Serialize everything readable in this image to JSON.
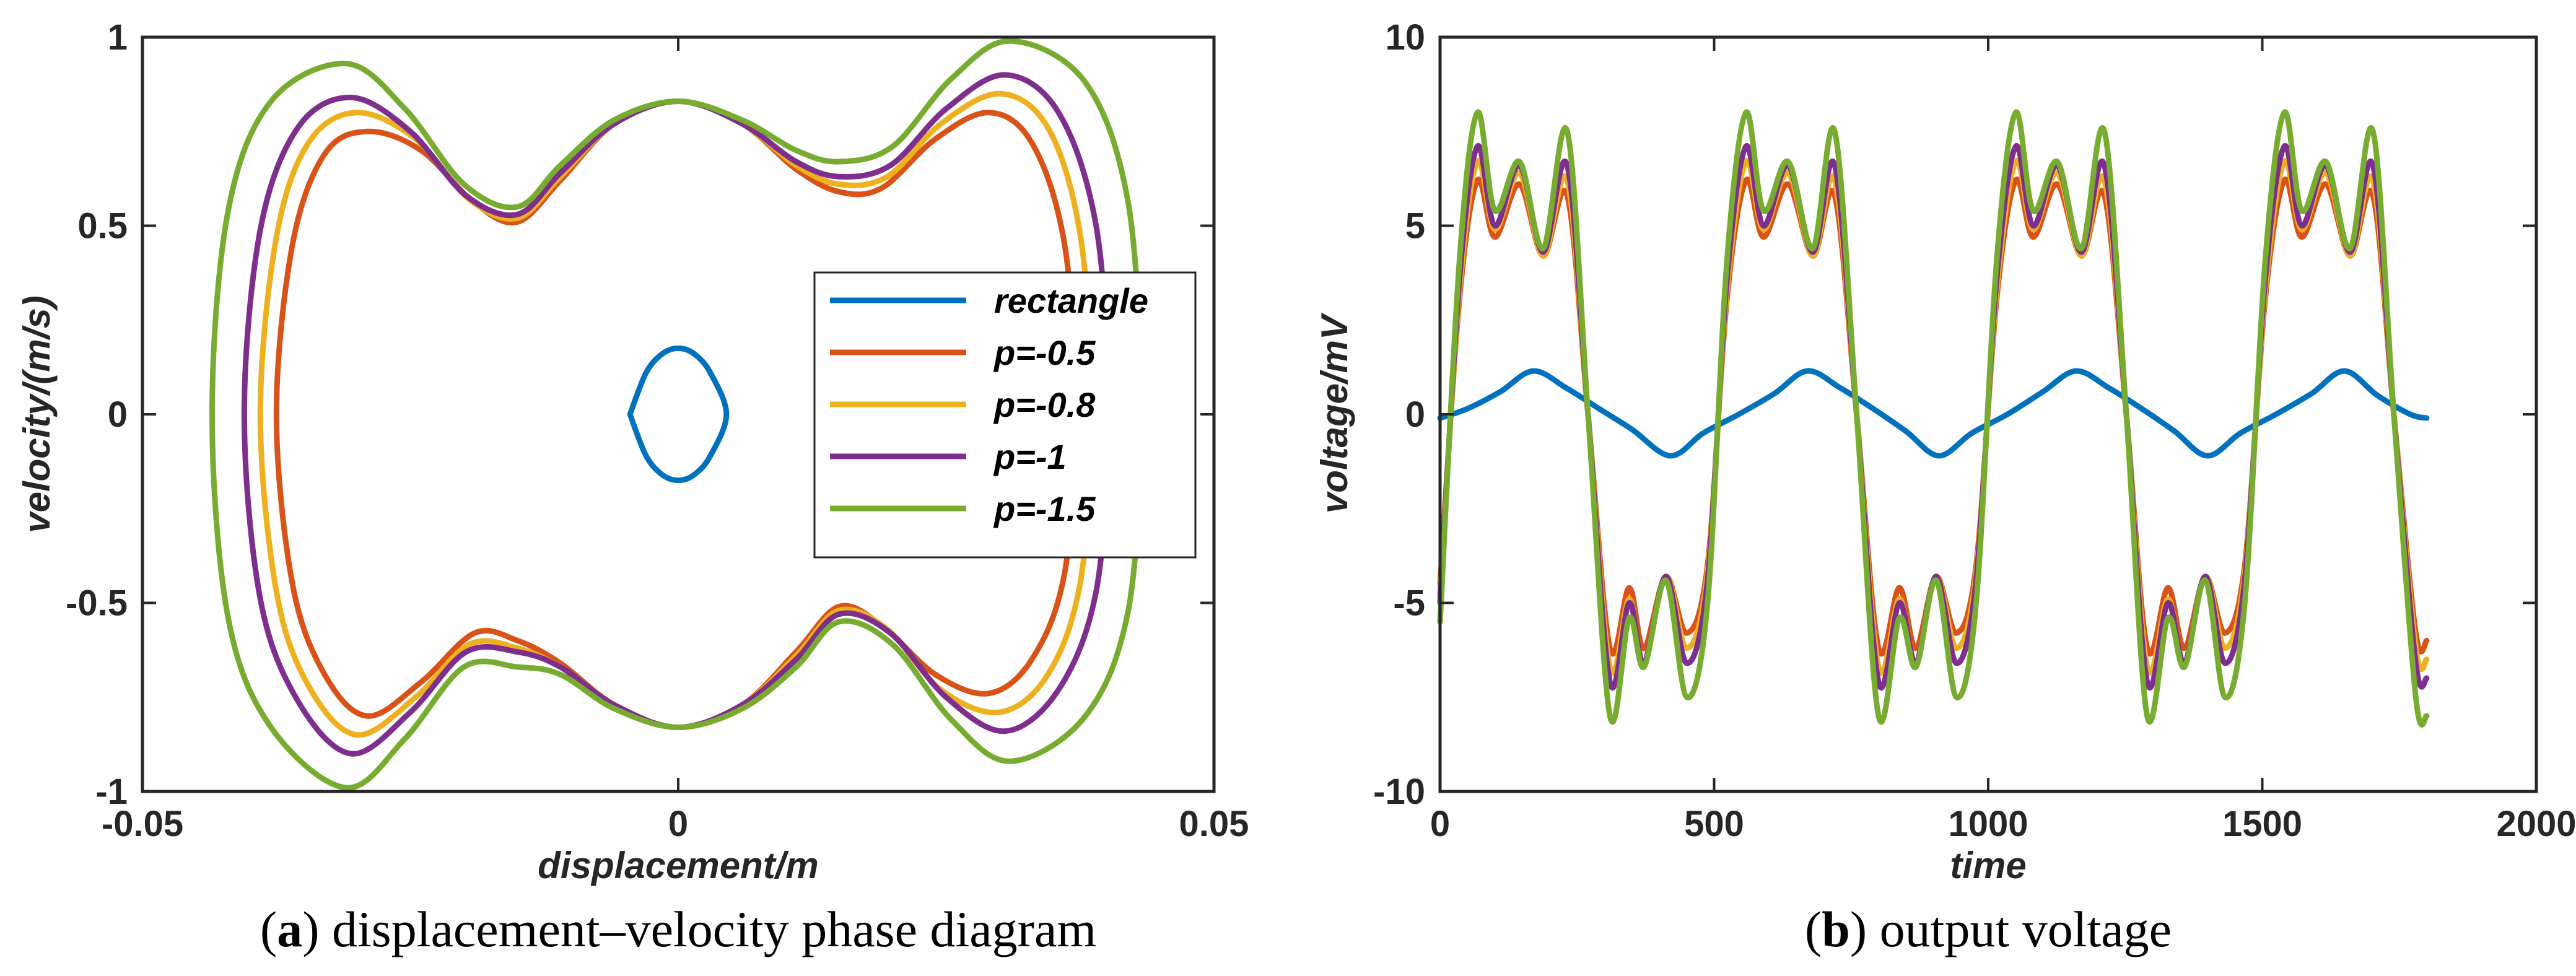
{
  "chart_data": [
    {
      "type": "line",
      "caption_letter": "a",
      "caption_text": "displacement–velocity phase diagram",
      "xlabel": "displacement/m",
      "ylabel": "velocity/(m/s)",
      "xlim": [
        -0.05,
        0.05
      ],
      "ylim": [
        -1,
        1
      ],
      "xticks": [
        -0.05,
        0,
        0.05
      ],
      "xtick_labels": [
        "-0.05",
        "0",
        "0.05"
      ],
      "yticks": [
        -1,
        -0.5,
        0,
        0.5,
        1
      ],
      "ytick_labels": [
        "-1",
        "-0.5",
        "0",
        "0.5",
        "1"
      ],
      "legend_position": "right",
      "series": [
        {
          "name": "rectangle",
          "color": "#0072BD",
          "x": [
            -0.0045,
            -0.003,
            -0.0015,
            0,
            0.0015,
            0.003,
            0.0045,
            0.003,
            0.0015,
            0,
            -0.0015,
            -0.003,
            -0.0045
          ],
          "y": [
            0,
            0.11,
            0.16,
            0.175,
            0.16,
            0.11,
            0,
            -0.11,
            -0.16,
            -0.175,
            -0.16,
            -0.11,
            0
          ]
        },
        {
          "name": "p=-0.5",
          "color": "#D95319",
          "x": [
            0.0375,
            0.036,
            0.033,
            0.029,
            0.024,
            0.019,
            0.015,
            0.011,
            0.006,
            0,
            -0.006,
            -0.011,
            -0.015,
            -0.019,
            -0.024,
            -0.029,
            -0.033,
            -0.036,
            -0.0375,
            -0.036,
            -0.033,
            -0.029,
            -0.024,
            -0.019,
            -0.015,
            -0.011,
            -0.006,
            0,
            0.006,
            0.011,
            0.015,
            0.019,
            0.024,
            0.029,
            0.033,
            0.036,
            0.0375
          ],
          "y": [
            0,
            0.46,
            0.72,
            0.8,
            0.73,
            0.6,
            0.59,
            0.65,
            0.77,
            0.83,
            0.77,
            0.62,
            0.51,
            0.56,
            0.7,
            0.75,
            0.69,
            0.45,
            0,
            -0.45,
            -0.69,
            -0.8,
            -0.71,
            -0.58,
            -0.6,
            -0.66,
            -0.77,
            -0.83,
            -0.77,
            -0.63,
            -0.51,
            -0.56,
            -0.69,
            -0.74,
            -0.65,
            -0.43,
            0
          ]
        },
        {
          "name": "p=-0.8",
          "color": "#EDB120",
          "x": [
            0.039,
            0.0375,
            0.0345,
            0.03,
            0.0245,
            0.0195,
            0.015,
            0.011,
            0.006,
            0,
            -0.006,
            -0.011,
            -0.015,
            -0.0195,
            -0.0245,
            -0.03,
            -0.0345,
            -0.0375,
            -0.039,
            -0.0375,
            -0.0345,
            -0.03,
            -0.0245,
            -0.0195,
            -0.015,
            -0.011,
            -0.006,
            0,
            0.006,
            0.011,
            0.015,
            0.0195,
            0.0245,
            0.03,
            0.0345,
            0.0375,
            0.039
          ],
          "y": [
            0,
            0.48,
            0.76,
            0.85,
            0.77,
            0.63,
            0.61,
            0.66,
            0.77,
            0.83,
            0.77,
            0.63,
            0.52,
            0.57,
            0.73,
            0.8,
            0.72,
            0.47,
            0,
            -0.47,
            -0.72,
            -0.85,
            -0.75,
            -0.61,
            -0.62,
            -0.67,
            -0.77,
            -0.83,
            -0.77,
            -0.64,
            -0.52,
            -0.57,
            -0.73,
            -0.79,
            -0.69,
            -0.45,
            0
          ]
        },
        {
          "name": "p=-1",
          "color": "#7E2F8E",
          "x": [
            0.0405,
            0.039,
            0.0355,
            0.0305,
            0.025,
            0.0198,
            0.015,
            0.011,
            0.006,
            0,
            -0.006,
            -0.011,
            -0.015,
            -0.0198,
            -0.025,
            -0.0305,
            -0.0355,
            -0.039,
            -0.0405,
            -0.039,
            -0.0355,
            -0.0305,
            -0.025,
            -0.0198,
            -0.015,
            -0.011,
            -0.006,
            0,
            0.006,
            0.011,
            0.015,
            0.0198,
            0.025,
            0.0305,
            0.0355,
            0.039,
            0.0405
          ],
          "y": [
            0,
            0.5,
            0.8,
            0.9,
            0.81,
            0.66,
            0.63,
            0.67,
            0.77,
            0.83,
            0.77,
            0.64,
            0.53,
            0.58,
            0.75,
            0.84,
            0.76,
            0.49,
            0,
            -0.49,
            -0.76,
            -0.9,
            -0.79,
            -0.63,
            -0.63,
            -0.67,
            -0.77,
            -0.83,
            -0.77,
            -0.65,
            -0.53,
            -0.58,
            -0.75,
            -0.84,
            -0.73,
            -0.47,
            0
          ]
        },
        {
          "name": "p=-1.5",
          "color": "#77AC30",
          "x": [
            0.0435,
            0.042,
            0.038,
            0.031,
            0.0255,
            0.02,
            0.015,
            0.011,
            0.006,
            0,
            -0.006,
            -0.011,
            -0.015,
            -0.02,
            -0.0255,
            -0.031,
            -0.038,
            -0.042,
            -0.0435,
            -0.042,
            -0.038,
            -0.031,
            -0.0255,
            -0.02,
            -0.015,
            -0.011,
            -0.006,
            0,
            0.006,
            0.011,
            0.015,
            0.02,
            0.0255,
            0.031,
            0.038,
            0.042,
            0.0435
          ],
          "y": [
            0,
            0.56,
            0.88,
            0.99,
            0.89,
            0.71,
            0.67,
            0.7,
            0.78,
            0.83,
            0.78,
            0.66,
            0.55,
            0.61,
            0.81,
            0.93,
            0.83,
            0.54,
            0,
            -0.54,
            -0.83,
            -0.99,
            -0.86,
            -0.67,
            -0.67,
            -0.69,
            -0.78,
            -0.83,
            -0.78,
            -0.67,
            -0.55,
            -0.61,
            -0.81,
            -0.92,
            -0.8,
            -0.52,
            0
          ]
        }
      ]
    },
    {
      "type": "line",
      "caption_letter": "b",
      "caption_text": "output voltage",
      "xlabel": "time",
      "ylabel": "voltage/mV",
      "xlim": [
        0,
        2000
      ],
      "ylim": [
        -10,
        10
      ],
      "xticks": [
        0,
        500,
        1000,
        1500,
        2000
      ],
      "xtick_labels": [
        "0",
        "500",
        "1000",
        "1500",
        "2000"
      ],
      "yticks": [
        -10,
        -5,
        0,
        5,
        10
      ],
      "ytick_labels": [
        "-10",
        "-5",
        "0",
        "5",
        "10"
      ],
      "series": [
        {
          "name": "rectangle",
          "color": "#0072BD",
          "x": [
            0,
            50,
            110,
            170,
            230,
            290,
            350,
            420,
            480,
            545,
            610,
            670,
            730,
            790,
            850,
            910,
            970,
            1035,
            1100,
            1160,
            1220,
            1280,
            1340,
            1400,
            1460,
            1525,
            1590,
            1650,
            1710,
            1770,
            1800
          ],
          "y": [
            -0.1,
            0.15,
            0.6,
            1.15,
            0.7,
            0.15,
            -0.4,
            -1.1,
            -0.5,
            0,
            0.55,
            1.15,
            0.7,
            0.15,
            -0.45,
            -1.1,
            -0.5,
            0,
            0.6,
            1.15,
            0.7,
            0.15,
            -0.45,
            -1.1,
            -0.5,
            0,
            0.55,
            1.15,
            0.5,
            0,
            -0.1
          ]
        },
        {
          "name": "p=-0.5",
          "color": "#D95319",
          "x": [
            0,
            35,
            68,
            100,
            145,
            188,
            232,
            270,
            310,
            345,
            372,
            412,
            450,
            488,
            523,
            558,
            590,
            635,
            680,
            720,
            760,
            800,
            838,
            868,
            905,
            942,
            978,
            1015,
            1050,
            1082,
            1126,
            1170,
            1212,
            1252,
            1290,
            1328,
            1358,
            1396,
            1432,
            1468,
            1505,
            1540,
            1572,
            1616,
            1660,
            1702,
            1740,
            1780,
            1800
          ],
          "y": [
            -4.5,
            3,
            6.2,
            4.7,
            6.1,
            4.2,
            5.8,
            0,
            -6.2,
            -4.6,
            -6.2,
            -4.3,
            -5.8,
            -4,
            3,
            6.2,
            4.7,
            6.1,
            4.2,
            5.8,
            0,
            -6.2,
            -4.6,
            -6.2,
            -4.3,
            -5.8,
            -4,
            3,
            6.2,
            4.7,
            6.1,
            4.2,
            5.8,
            0,
            -6.2,
            -4.6,
            -6.2,
            -4.3,
            -5.8,
            -4,
            3,
            6.2,
            4.7,
            6.1,
            4.2,
            5.8,
            0,
            -5.8,
            -6
          ]
        },
        {
          "name": "p=-0.8",
          "color": "#EDB120",
          "x": [
            0,
            35,
            68,
            100,
            145,
            188,
            232,
            270,
            310,
            345,
            372,
            412,
            450,
            488,
            523,
            558,
            590,
            635,
            680,
            720,
            760,
            800,
            838,
            868,
            905,
            942,
            978,
            1015,
            1050,
            1082,
            1126,
            1170,
            1212,
            1252,
            1290,
            1328,
            1358,
            1396,
            1432,
            1468,
            1505,
            1540,
            1572,
            1616,
            1660,
            1702,
            1740,
            1780,
            1800
          ],
          "y": [
            -4.8,
            3.2,
            6.7,
            4.9,
            6.4,
            4.2,
            6.2,
            0,
            -6.7,
            -4.9,
            -6.6,
            -4.3,
            -6.2,
            -4.2,
            3.2,
            6.7,
            4.9,
            6.4,
            4.2,
            6.2,
            0,
            -6.7,
            -4.9,
            -6.6,
            -4.3,
            -6.2,
            -4.2,
            3.2,
            6.7,
            4.9,
            6.4,
            4.2,
            6.2,
            0,
            -6.7,
            -4.9,
            -6.6,
            -4.3,
            -6.2,
            -4.2,
            3.2,
            6.7,
            4.9,
            6.4,
            4.2,
            6.2,
            0,
            -6.2,
            -6.5
          ]
        },
        {
          "name": "p=-1",
          "color": "#7E2F8E",
          "x": [
            0,
            35,
            68,
            100,
            145,
            188,
            232,
            270,
            310,
            345,
            372,
            412,
            450,
            488,
            523,
            558,
            590,
            635,
            680,
            720,
            760,
            800,
            838,
            868,
            905,
            942,
            978,
            1015,
            1050,
            1082,
            1126,
            1170,
            1212,
            1252,
            1290,
            1328,
            1358,
            1396,
            1432,
            1468,
            1505,
            1540,
            1572,
            1616,
            1660,
            1702,
            1740,
            1780,
            1800
          ],
          "y": [
            -5,
            3.5,
            7.1,
            5,
            6.6,
            4.3,
            6.6,
            0,
            -7.1,
            -5,
            -6.6,
            -4.3,
            -6.6,
            -4.4,
            3.5,
            7.1,
            5,
            6.6,
            4.3,
            6.6,
            0,
            -7.1,
            -5,
            -6.6,
            -4.3,
            -6.6,
            -4.4,
            3.5,
            7.1,
            5,
            6.6,
            4.3,
            6.6,
            0,
            -7.1,
            -5,
            -6.6,
            -4.3,
            -6.6,
            -4.4,
            3.5,
            7.1,
            5,
            6.6,
            4.3,
            6.6,
            0,
            -6.6,
            -7
          ]
        },
        {
          "name": "p=-1.5",
          "color": "#77AC30",
          "x": [
            0,
            35,
            68,
            100,
            145,
            188,
            232,
            270,
            310,
            345,
            372,
            412,
            450,
            488,
            523,
            558,
            590,
            635,
            680,
            720,
            760,
            800,
            838,
            868,
            905,
            942,
            978,
            1015,
            1050,
            1082,
            1126,
            1170,
            1212,
            1252,
            1290,
            1328,
            1358,
            1396,
            1432,
            1468,
            1505,
            1540,
            1572,
            1616,
            1660,
            1702,
            1740,
            1780,
            1800
          ],
          "y": [
            -5.5,
            4,
            8,
            5.4,
            6.7,
            4.4,
            7.5,
            0,
            -8,
            -5.4,
            -6.7,
            -4.4,
            -7.5,
            -5,
            4,
            8,
            5.4,
            6.7,
            4.4,
            7.5,
            0,
            -8,
            -5.4,
            -6.7,
            -4.4,
            -7.5,
            -5,
            4,
            8,
            5.4,
            6.7,
            4.4,
            7.5,
            0,
            -8,
            -5.4,
            -6.7,
            -4.4,
            -7.5,
            -5,
            4,
            8,
            5.4,
            6.7,
            4.4,
            7.5,
            0,
            -7.5,
            -8
          ]
        }
      ]
    }
  ]
}
